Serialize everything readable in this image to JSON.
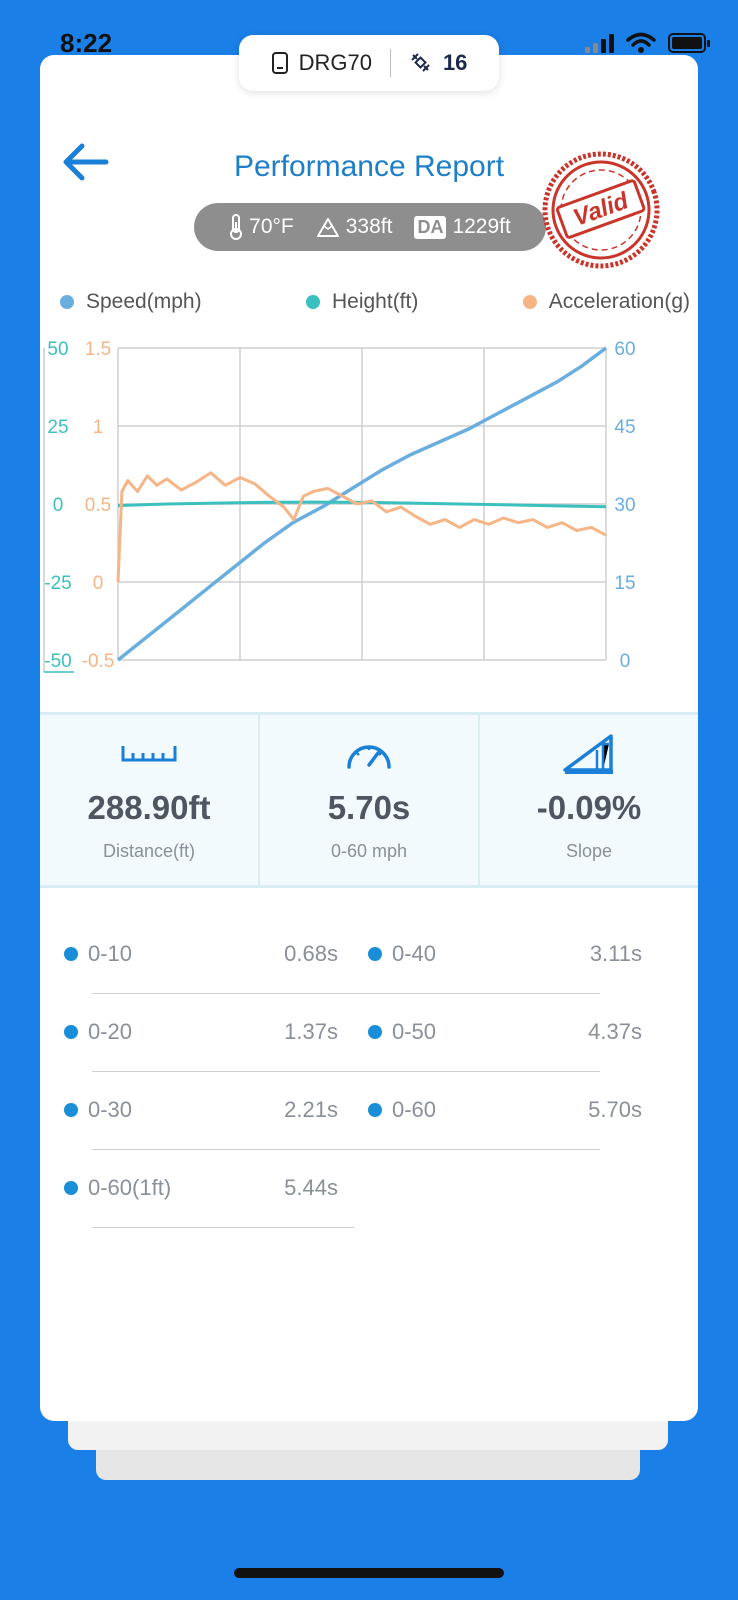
{
  "status_bar": {
    "time": "8:22"
  },
  "device": {
    "name": "DRG70",
    "satellites": "16"
  },
  "header": {
    "title": "Performance Report",
    "stamp_text": "Valid"
  },
  "conditions": {
    "temperature": "70°F",
    "altitude": "338ft",
    "da_label": "DA",
    "density_altitude": "1229ft"
  },
  "legend": [
    {
      "label": "Speed(mph)",
      "color": "#6aaee0"
    },
    {
      "label": "Height(ft)",
      "color": "#3bbfbf"
    },
    {
      "label": "Acceleration(g)",
      "color": "#f5b587"
    }
  ],
  "chart_data": {
    "type": "line",
    "xlabel": "",
    "ylabel": "",
    "axes": {
      "height_axis": {
        "ticks": [
          "50",
          "25",
          "0",
          "-25",
          "-50"
        ],
        "range": [
          -50,
          50
        ],
        "color": "#3bbfbf"
      },
      "accel_axis": {
        "ticks": [
          "1.5",
          "1",
          "0.5",
          "0",
          "-0.5"
        ],
        "range": [
          -0.5,
          1.5
        ],
        "color": "#f5b587"
      },
      "speed_axis": {
        "ticks": [
          "60",
          "45",
          "30",
          "15",
          "0"
        ],
        "range": [
          0,
          60
        ],
        "color": "#6aaee0"
      }
    },
    "grid": true,
    "series": [
      {
        "name": "Speed(mph)",
        "color": "#6aaee0",
        "axis": "speed",
        "x": [
          0,
          0.06,
          0.12,
          0.18,
          0.24,
          0.3,
          0.36,
          0.42,
          0.48,
          0.54,
          0.6,
          0.66,
          0.72,
          0.78,
          0.84,
          0.9,
          0.95,
          1.0
        ],
        "values": [
          0,
          4.5,
          9,
          13.5,
          18,
          22.5,
          26.5,
          29.5,
          33,
          36.5,
          39.5,
          42,
          44.5,
          47.5,
          50.5,
          53.5,
          56.5,
          60
        ]
      },
      {
        "name": "Height(ft)",
        "color": "#3bbfbf",
        "axis": "height",
        "x": [
          0,
          0.1,
          0.2,
          0.3,
          0.4,
          0.5,
          0.6,
          0.7,
          0.8,
          0.9,
          1.0
        ],
        "values": [
          -0.5,
          0,
          0.3,
          0.5,
          0.6,
          0.5,
          0.3,
          0,
          -0.3,
          -0.6,
          -0.9
        ]
      },
      {
        "name": "Acceleration(g)",
        "color": "#f5b587",
        "axis": "accel",
        "x": [
          0,
          0.008,
          0.02,
          0.04,
          0.06,
          0.08,
          0.1,
          0.13,
          0.16,
          0.19,
          0.22,
          0.25,
          0.28,
          0.31,
          0.34,
          0.36,
          0.38,
          0.4,
          0.43,
          0.46,
          0.49,
          0.52,
          0.55,
          0.58,
          0.61,
          0.64,
          0.67,
          0.7,
          0.73,
          0.76,
          0.79,
          0.82,
          0.85,
          0.88,
          0.91,
          0.94,
          0.97,
          1.0
        ],
        "values": [
          0,
          0.58,
          0.65,
          0.58,
          0.68,
          0.62,
          0.66,
          0.59,
          0.64,
          0.7,
          0.62,
          0.67,
          0.63,
          0.55,
          0.48,
          0.4,
          0.55,
          0.58,
          0.6,
          0.55,
          0.5,
          0.52,
          0.45,
          0.48,
          0.42,
          0.37,
          0.4,
          0.35,
          0.4,
          0.37,
          0.41,
          0.38,
          0.4,
          0.35,
          0.38,
          0.33,
          0.35,
          0.3
        ]
      }
    ]
  },
  "stats": [
    {
      "value": "288.90ft",
      "label": "Distance(ft)",
      "icon": "ruler-icon"
    },
    {
      "value": "5.70s",
      "label": "0-60 mph",
      "icon": "speedometer-icon"
    },
    {
      "value": "-0.09%",
      "label": "Slope",
      "icon": "slope-icon"
    }
  ],
  "splits": [
    {
      "label": "0-10",
      "time": "0.68s"
    },
    {
      "label": "0-40",
      "time": "3.11s"
    },
    {
      "label": "0-20",
      "time": "1.37s"
    },
    {
      "label": "0-50",
      "time": "4.37s"
    },
    {
      "label": "0-30",
      "time": "2.21s"
    },
    {
      "label": "0-60",
      "time": "5.70s"
    },
    {
      "label": "0-60(1ft)",
      "time": "5.44s"
    }
  ]
}
